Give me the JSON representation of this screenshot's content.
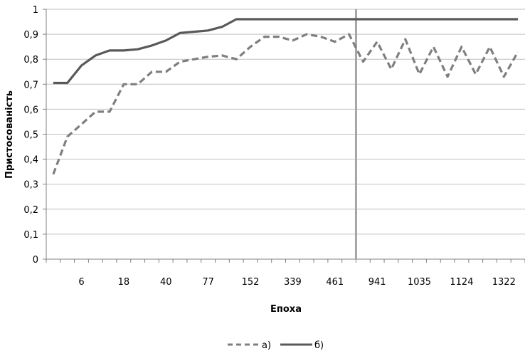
{
  "chart_data": {
    "type": "line",
    "xlabel": "Епоха",
    "ylabel": "Пристосованість",
    "ylim": [
      0,
      1
    ],
    "y_ticks": [
      "0",
      "0,1",
      "0,2",
      "0,3",
      "0,4",
      "0,5",
      "0,6",
      "0,7",
      "0,8",
      "0,9",
      "1"
    ],
    "x_tick_labels": [
      "6",
      "18",
      "40",
      "77",
      "152",
      "339",
      "461",
      "941",
      "1035",
      "1124",
      "1322"
    ],
    "grid": true,
    "legend_position": "bottom",
    "marker_line_after_label": "941",
    "series": [
      {
        "name": "а)",
        "style": "dashed",
        "color": "#7f7f7f",
        "values": [
          0.34,
          0.49,
          0.54,
          0.59,
          0.59,
          0.7,
          0.7,
          0.75,
          0.75,
          0.79,
          0.8,
          0.81,
          0.815,
          0.8,
          0.85,
          0.89,
          0.89,
          0.875,
          0.9,
          0.89,
          0.87,
          0.9,
          0.79,
          0.87,
          0.76,
          0.88,
          0.74,
          0.85,
          0.73,
          0.85,
          0.74,
          0.85,
          0.73,
          0.83
        ]
      },
      {
        "name": "б)",
        "style": "solid",
        "color": "#595959",
        "values": [
          0.705,
          0.705,
          0.775,
          0.815,
          0.835,
          0.835,
          0.84,
          0.855,
          0.875,
          0.905,
          0.91,
          0.915,
          0.93,
          0.96,
          0.96,
          0.96,
          0.96,
          0.96,
          0.96,
          0.96,
          0.96,
          0.96,
          0.96,
          0.96,
          0.96,
          0.96,
          0.96,
          0.96,
          0.96,
          0.96,
          0.96,
          0.96,
          0.96,
          0.96
        ]
      }
    ]
  }
}
